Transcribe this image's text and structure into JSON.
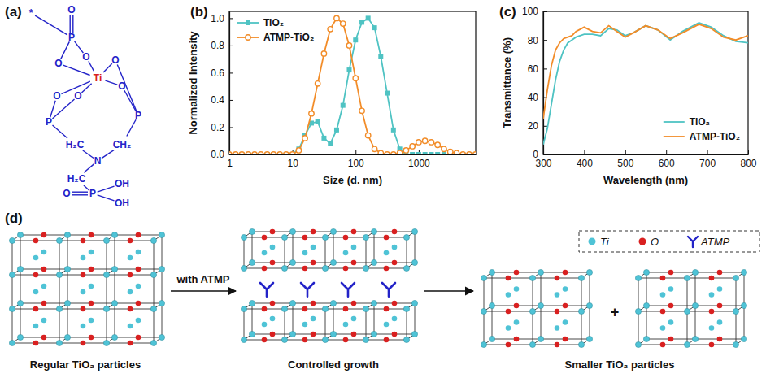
{
  "panel_labels": [
    "(a)",
    "(b)",
    "(c)",
    "(d)"
  ],
  "structure": {
    "atoms": [
      "*",
      "O",
      "P",
      "O",
      "O",
      "Ti",
      "O",
      "O",
      "P",
      "O",
      "O",
      "P",
      "H₂C",
      "CH₂",
      "N",
      "H₂C",
      "P",
      "O",
      "OH",
      "OH"
    ]
  },
  "chart_data": [
    {
      "type": "line",
      "x_label": "Size (d. nm)",
      "y_label": "Normalized Intensity",
      "log": "x",
      "xlim": [
        1,
        8000
      ],
      "xticks": [
        1,
        10,
        100,
        1000
      ],
      "ylim": [
        0,
        1.05
      ],
      "yticks": [
        {
          "value": 0,
          "label": "0.0"
        },
        0.2,
        0.4,
        0.6,
        0.8,
        {
          "value": 1,
          "label": "1.0"
        }
      ],
      "legend": "upper left",
      "x": [
        1,
        1.26,
        1.58,
        2,
        2.51,
        3.16,
        3.98,
        5.01,
        6.31,
        7.94,
        10,
        12.6,
        15.8,
        20,
        25.1,
        31.6,
        39.8,
        50.1,
        63.1,
        79.4,
        100,
        126,
        158,
        200,
        251,
        316,
        398,
        501,
        631,
        794,
        1000,
        1259,
        1585,
        1995,
        2512,
        3162,
        3981,
        5012,
        6310,
        7943
      ],
      "series": [
        {
          "name": "TiO₂",
          "color": "#4fc3c3",
          "marker": "square",
          "values": [
            0,
            0,
            0,
            0,
            0,
            0,
            0,
            0,
            0,
            0,
            0,
            0.04,
            0.14,
            0.23,
            0.24,
            0.12,
            0.08,
            0.18,
            0.36,
            0.62,
            0.84,
            0.97,
            1.0,
            0.93,
            0.72,
            0.45,
            0.18,
            0.04,
            0,
            0,
            0,
            0,
            0,
            0,
            0,
            0,
            0,
            0,
            0,
            0
          ]
        },
        {
          "name": "ATMP-TiO₂",
          "color": "#f28c28",
          "marker": "circle",
          "values": [
            0,
            0,
            0,
            0,
            0,
            0,
            0,
            0,
            0,
            0,
            0,
            0.03,
            0.12,
            0.3,
            0.52,
            0.74,
            0.92,
            1.0,
            0.96,
            0.8,
            0.56,
            0.32,
            0.14,
            0.04,
            0.01,
            0,
            0,
            0.01,
            0.03,
            0.06,
            0.09,
            0.1,
            0.09,
            0.07,
            0.04,
            0.02,
            0.01,
            0,
            0,
            0
          ]
        }
      ]
    },
    {
      "type": "line",
      "x_label": "Wavelength (nm)",
      "y_label": "Transmittance (%)",
      "xlim": [
        300,
        800
      ],
      "xticks": [
        300,
        400,
        500,
        600,
        700,
        800
      ],
      "ylim": [
        0,
        100
      ],
      "yticks": [
        0,
        20,
        40,
        60,
        80,
        100
      ],
      "legend": "lower right",
      "x": [
        300,
        310,
        320,
        330,
        340,
        350,
        360,
        370,
        380,
        400,
        420,
        440,
        460,
        480,
        500,
        520,
        550,
        580,
        610,
        640,
        680,
        710,
        740,
        770,
        800
      ],
      "series": [
        {
          "name": "TiO₂",
          "color": "#4fc3c3",
          "values": [
            7,
            18,
            35,
            52,
            65,
            73,
            78,
            80,
            82,
            84,
            84,
            83,
            88,
            87,
            83,
            85,
            90,
            87,
            80,
            86,
            92,
            89,
            83,
            79,
            78
          ]
        },
        {
          "name": "ATMP-TiO₂",
          "color": "#f28c28",
          "values": [
            25,
            45,
            62,
            73,
            78,
            81,
            82,
            83,
            86,
            89,
            86,
            85,
            90,
            86,
            82,
            85,
            90,
            87,
            81,
            85,
            91,
            88,
            82,
            80,
            83
          ]
        }
      ]
    }
  ],
  "schematic": {
    "arrow_label": "with ATMP",
    "plus": "+",
    "captions": [
      "Regular TiO₂ particles",
      "Controlled growth",
      "Smaller TiO₂ particles"
    ],
    "legend": [
      "Ti",
      "O",
      "ATMP"
    ]
  }
}
